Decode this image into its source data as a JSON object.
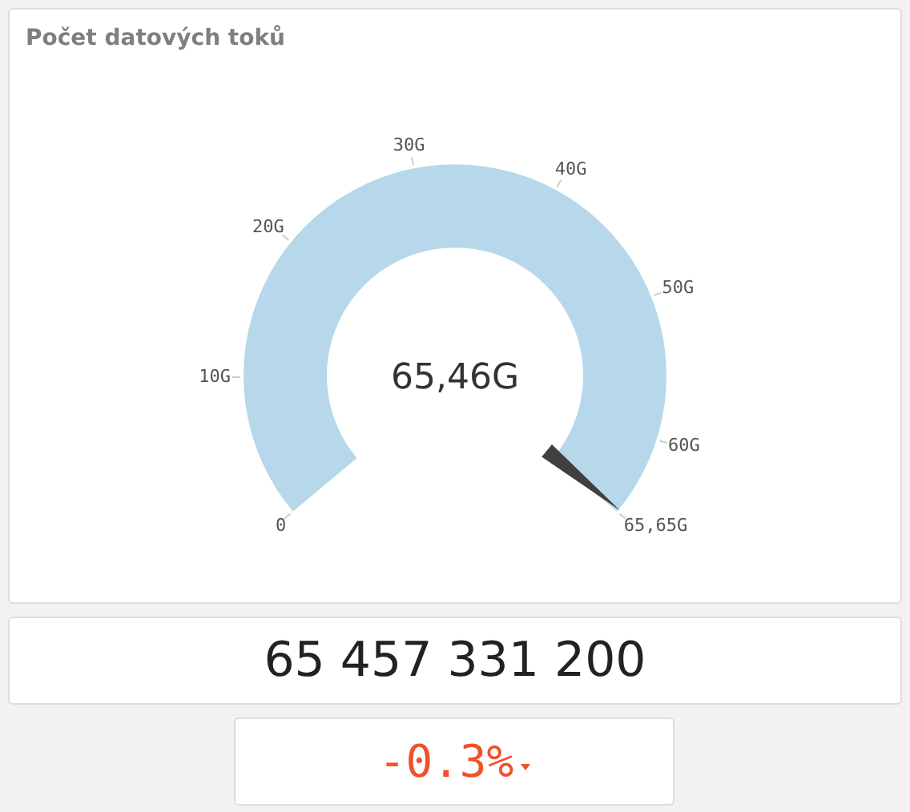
{
  "chart_data": {
    "type": "other",
    "title": "Počet datových toků",
    "values": [
      65.46
    ],
    "value_labels": [
      "65,46G"
    ],
    "color": "#b7d7ea",
    "annotations": [
      "65 457 331 200",
      "-0.3%",
      "0",
      "10G",
      "20G",
      "30G",
      "40G",
      "50G",
      "60G",
      "65,65G"
    ]
  }
}
